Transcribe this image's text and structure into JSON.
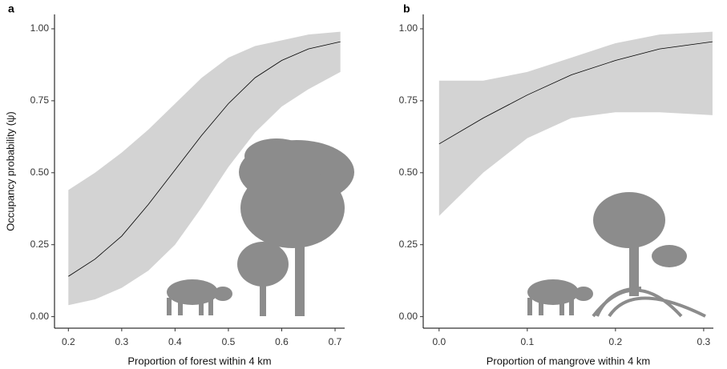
{
  "chart_data": [
    {
      "type": "line",
      "panel_label": "a",
      "xlabel": "Proportion of forest within 4 km",
      "ylabel": "Occupancy probability (ψ)",
      "x": [
        0.2,
        0.25,
        0.3,
        0.35,
        0.4,
        0.45,
        0.5,
        0.55,
        0.6,
        0.65,
        0.71
      ],
      "values": [
        0.14,
        0.2,
        0.28,
        0.39,
        0.51,
        0.63,
        0.74,
        0.83,
        0.89,
        0.93,
        0.955
      ],
      "upper": [
        0.44,
        0.5,
        0.57,
        0.65,
        0.74,
        0.83,
        0.9,
        0.94,
        0.96,
        0.98,
        0.99
      ],
      "lower": [
        0.04,
        0.06,
        0.1,
        0.16,
        0.25,
        0.38,
        0.52,
        0.64,
        0.73,
        0.79,
        0.85
      ],
      "color": "#000000",
      "band_color": "#d3d3d3",
      "xlim": [
        0.174,
        0.718
      ],
      "xticks": [
        0.2,
        0.3,
        0.4,
        0.5,
        0.6,
        0.7
      ],
      "ylim": [
        -0.04,
        1.05
      ],
      "yticks": [
        {
          "value": 0,
          "label": "0.00"
        },
        {
          "value": 0.25,
          "label": "0.25"
        },
        {
          "value": 0.5,
          "label": "0.50"
        },
        {
          "value": 0.75,
          "label": "0.75"
        },
        {
          "value": 1,
          "label": "1.00"
        }
      ]
    },
    {
      "type": "line",
      "panel_label": "b",
      "xlabel": "Proportion of mangrove within 4 km",
      "x": [
        0,
        0.05,
        0.1,
        0.15,
        0.2,
        0.25,
        0.31
      ],
      "values": [
        0.6,
        0.69,
        0.77,
        0.84,
        0.89,
        0.93,
        0.955
      ],
      "upper": [
        0.82,
        0.82,
        0.85,
        0.9,
        0.95,
        0.98,
        0.99
      ],
      "lower": [
        0.35,
        0.5,
        0.62,
        0.69,
        0.71,
        0.71,
        0.7
      ],
      "color": "#000000",
      "band_color": "#d3d3d3",
      "xlim": [
        -0.018,
        0.311
      ],
      "xticks": [
        {
          "value": 0,
          "label": "0.0"
        },
        0.1,
        0.2,
        0.3
      ],
      "ylim": [
        -0.04,
        1.05
      ],
      "yticks": [
        {
          "value": 0,
          "label": "0.00"
        },
        {
          "value": 0.25,
          "label": "0.25"
        },
        {
          "value": 0.5,
          "label": "0.50"
        },
        {
          "value": 0.75,
          "label": "0.75"
        },
        {
          "value": 1,
          "label": "1.00"
        }
      ]
    }
  ]
}
